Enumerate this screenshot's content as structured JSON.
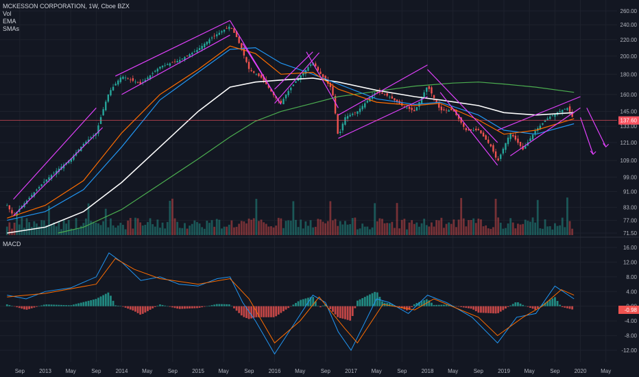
{
  "header": {
    "title": "MCKESSON CORPORATION, 1W, Cboe BZX",
    "indicators": [
      "Vol",
      "EMA",
      "SMAs"
    ]
  },
  "macd_label": "MACD",
  "colors": {
    "background": "#131722",
    "up": "#26a69a",
    "down": "#ef5350",
    "trendline": "#e040fb",
    "ema": "#ff6d00",
    "sma50": "#2196f3",
    "sma100": "#ffffff",
    "sma200": "#4caf50",
    "price_line": "#f7525f",
    "macd_line": "#2196f3",
    "signal_line": "#ff6d00",
    "grid": "#1e222d",
    "axis_text": "#b2b5be"
  },
  "chart_data": [
    {
      "type": "candlestick",
      "title": "MCKESSON CORPORATION, 1W, Cboe BZX",
      "scale": "log",
      "x_tick_labels": [
        "Sep",
        "2013",
        "May",
        "Sep",
        "2014",
        "May",
        "Sep",
        "2015",
        "May",
        "Sep",
        "2016",
        "May",
        "Sep",
        "2017",
        "May",
        "Sep",
        "2018",
        "May",
        "Sep",
        "2019",
        "May",
        "Sep",
        "2020",
        "May"
      ],
      "y_tick_labels": [
        260.0,
        240.0,
        220.0,
        200.0,
        180.0,
        160.0,
        145.0,
        133.0,
        121.0,
        109.0,
        99.0,
        91.0,
        83.0,
        77.0,
        71.5
      ],
      "last_price": "137.60",
      "price_points": [
        {
          "x": "2012-07",
          "y": 84
        },
        {
          "x": "2012-08",
          "y": 79
        },
        {
          "x": "2012-10",
          "y": 86
        },
        {
          "x": "2013-01",
          "y": 97
        },
        {
          "x": "2013-05",
          "y": 110
        },
        {
          "x": "2013-07",
          "y": 120
        },
        {
          "x": "2013-09",
          "y": 128
        },
        {
          "x": "2013-10",
          "y": 145
        },
        {
          "x": "2013-11",
          "y": 162
        },
        {
          "x": "2014-01",
          "y": 178
        },
        {
          "x": "2014-04",
          "y": 170
        },
        {
          "x": "2014-07",
          "y": 188
        },
        {
          "x": "2014-10",
          "y": 195
        },
        {
          "x": "2015-01",
          "y": 208
        },
        {
          "x": "2015-03",
          "y": 222
        },
        {
          "x": "2015-06",
          "y": 238
        },
        {
          "x": "2015-07",
          "y": 224
        },
        {
          "x": "2015-09",
          "y": 185
        },
        {
          "x": "2015-11",
          "y": 176
        },
        {
          "x": "2016-01",
          "y": 158
        },
        {
          "x": "2016-02",
          "y": 152
        },
        {
          "x": "2016-03",
          "y": 162
        },
        {
          "x": "2016-05",
          "y": 178
        },
        {
          "x": "2016-07",
          "y": 193
        },
        {
          "x": "2016-08",
          "y": 182
        },
        {
          "x": "2016-10",
          "y": 165
        },
        {
          "x": "2016-11",
          "y": 124
        },
        {
          "x": "2016-12",
          "y": 140
        },
        {
          "x": "2017-02",
          "y": 145
        },
        {
          "x": "2017-05",
          "y": 163
        },
        {
          "x": "2017-07",
          "y": 158
        },
        {
          "x": "2017-09",
          "y": 150
        },
        {
          "x": "2017-11",
          "y": 145
        },
        {
          "x": "2018-01",
          "y": 168
        },
        {
          "x": "2018-03",
          "y": 146
        },
        {
          "x": "2018-05",
          "y": 146
        },
        {
          "x": "2018-07",
          "y": 130
        },
        {
          "x": "2018-09",
          "y": 130
        },
        {
          "x": "2018-11",
          "y": 118
        },
        {
          "x": "2018-12",
          "y": 108
        },
        {
          "x": "2019-02",
          "y": 128
        },
        {
          "x": "2019-04",
          "y": 116
        },
        {
          "x": "2019-06",
          "y": 130
        },
        {
          "x": "2019-08",
          "y": 140
        },
        {
          "x": "2019-10",
          "y": 146
        },
        {
          "x": "2019-11",
          "y": 148
        },
        {
          "x": "2019-12",
          "y": 137.6
        }
      ],
      "ema": [
        {
          "x": "2012-07",
          "y": 78
        },
        {
          "x": "2013-01",
          "y": 84
        },
        {
          "x": "2013-07",
          "y": 97
        },
        {
          "x": "2014-01",
          "y": 128
        },
        {
          "x": "2014-07",
          "y": 160
        },
        {
          "x": "2015-01",
          "y": 185
        },
        {
          "x": "2015-06",
          "y": 212
        },
        {
          "x": "2015-10",
          "y": 203
        },
        {
          "x": "2016-02",
          "y": 180
        },
        {
          "x": "2016-07",
          "y": 182
        },
        {
          "x": "2016-11",
          "y": 165
        },
        {
          "x": "2017-05",
          "y": 153
        },
        {
          "x": "2017-11",
          "y": 150
        },
        {
          "x": "2018-03",
          "y": 152
        },
        {
          "x": "2018-09",
          "y": 138
        },
        {
          "x": "2019-01",
          "y": 127
        },
        {
          "x": "2019-06",
          "y": 130
        },
        {
          "x": "2019-12",
          "y": 139
        }
      ],
      "sma_50": [
        {
          "x": "2012-07",
          "y": 77
        },
        {
          "x": "2013-01",
          "y": 81
        },
        {
          "x": "2013-07",
          "y": 92
        },
        {
          "x": "2014-01",
          "y": 118
        },
        {
          "x": "2014-07",
          "y": 155
        },
        {
          "x": "2015-01",
          "y": 182
        },
        {
          "x": "2015-06",
          "y": 208
        },
        {
          "x": "2015-10",
          "y": 210
        },
        {
          "x": "2016-02",
          "y": 192
        },
        {
          "x": "2016-07",
          "y": 180
        },
        {
          "x": "2016-11",
          "y": 170
        },
        {
          "x": "2017-05",
          "y": 156
        },
        {
          "x": "2017-11",
          "y": 151
        },
        {
          "x": "2018-03",
          "y": 153
        },
        {
          "x": "2018-09",
          "y": 142
        },
        {
          "x": "2019-01",
          "y": 130
        },
        {
          "x": "2019-06",
          "y": 127
        },
        {
          "x": "2019-12",
          "y": 135
        }
      ],
      "sma_100": [
        {
          "x": "2012-07",
          "y": 71.5
        },
        {
          "x": "2013-01",
          "y": 74
        },
        {
          "x": "2013-07",
          "y": 81
        },
        {
          "x": "2014-01",
          "y": 96
        },
        {
          "x": "2014-07",
          "y": 118
        },
        {
          "x": "2015-01",
          "y": 145
        },
        {
          "x": "2015-06",
          "y": 167
        },
        {
          "x": "2015-10",
          "y": 172
        },
        {
          "x": "2016-02",
          "y": 174
        },
        {
          "x": "2016-07",
          "y": 176
        },
        {
          "x": "2016-11",
          "y": 172
        },
        {
          "x": "2017-05",
          "y": 164
        },
        {
          "x": "2017-11",
          "y": 158
        },
        {
          "x": "2018-03",
          "y": 155
        },
        {
          "x": "2018-09",
          "y": 150
        },
        {
          "x": "2019-01",
          "y": 144
        },
        {
          "x": "2019-06",
          "y": 142
        },
        {
          "x": "2019-12",
          "y": 144
        }
      ],
      "sma_200": [
        {
          "x": "2013-03",
          "y": 71.5
        },
        {
          "x": "2013-07",
          "y": 74
        },
        {
          "x": "2014-01",
          "y": 82
        },
        {
          "x": "2014-07",
          "y": 95
        },
        {
          "x": "2015-01",
          "y": 110
        },
        {
          "x": "2015-06",
          "y": 125
        },
        {
          "x": "2015-10",
          "y": 137
        },
        {
          "x": "2016-02",
          "y": 145
        },
        {
          "x": "2016-07",
          "y": 152
        },
        {
          "x": "2016-11",
          "y": 158
        },
        {
          "x": "2017-05",
          "y": 163
        },
        {
          "x": "2017-11",
          "y": 168
        },
        {
          "x": "2018-05",
          "y": 171
        },
        {
          "x": "2018-09",
          "y": 172
        },
        {
          "x": "2019-01",
          "y": 170
        },
        {
          "x": "2019-06",
          "y": 167
        },
        {
          "x": "2019-12",
          "y": 162
        }
      ],
      "trendlines": [
        {
          "from": {
            "x": "2012-08",
            "y": 79
          },
          "to": {
            "x": "2013-10",
            "y": 132
          }
        },
        {
          "from": {
            "x": "2012-08",
            "y": 87
          },
          "to": {
            "x": "2013-09",
            "y": 148
          }
        },
        {
          "from": {
            "x": "2013-12",
            "y": 178
          },
          "to": {
            "x": "2015-06",
            "y": 246
          }
        },
        {
          "from": {
            "x": "2014-01",
            "y": 160
          },
          "to": {
            "x": "2015-06",
            "y": 226
          }
        },
        {
          "from": {
            "x": "2015-06",
            "y": 246
          },
          "to": {
            "x": "2016-01",
            "y": 160
          }
        },
        {
          "from": {
            "x": "2015-08",
            "y": 215
          },
          "to": {
            "x": "2016-02",
            "y": 151
          }
        },
        {
          "from": {
            "x": "2016-01",
            "y": 152
          },
          "to": {
            "x": "2016-08",
            "y": 204
          }
        },
        {
          "from": {
            "x": "2016-01",
            "y": 165
          },
          "to": {
            "x": "2016-07",
            "y": 205
          }
        },
        {
          "from": {
            "x": "2016-06",
            "y": 205
          },
          "to": {
            "x": "2016-11",
            "y": 148
          }
        },
        {
          "from": {
            "x": "2016-11",
            "y": 124
          },
          "to": {
            "x": "2018-01",
            "y": 158
          }
        },
        {
          "from": {
            "x": "2016-11",
            "y": 142
          },
          "to": {
            "x": "2018-01",
            "y": 190
          }
        },
        {
          "from": {
            "x": "2018-01",
            "y": 185
          },
          "to": {
            "x": "2018-12",
            "y": 121
          }
        },
        {
          "from": {
            "x": "2018-03",
            "y": 162
          },
          "to": {
            "x": "2018-12",
            "y": 106
          }
        },
        {
          "from": {
            "x": "2018-12",
            "y": 130
          },
          "to": {
            "x": "2020-01",
            "y": 158
          }
        },
        {
          "from": {
            "x": "2019-02",
            "y": 112
          },
          "to": {
            "x": "2020-01",
            "y": 148
          }
        }
      ],
      "projection_arrows": [
        {
          "from": {
            "x": "2020-01",
            "y": 140
          },
          "to": {
            "x": "2020-03",
            "y": 113
          }
        },
        {
          "from": {
            "x": "2020-02",
            "y": 148
          },
          "to": {
            "x": "2020-05",
            "y": 118
          }
        }
      ],
      "volume_overlay": true
    },
    {
      "type": "macd",
      "title": "MACD",
      "y_tick_labels": [
        16.0,
        12.0,
        8.0,
        4.0,
        0.0,
        -4.0,
        -8.0,
        -12.0
      ],
      "last_value": "-0.98",
      "macd_line": [
        {
          "x": "2012-07",
          "y": 3
        },
        {
          "x": "2012-10",
          "y": 2
        },
        {
          "x": "2013-01",
          "y": 4
        },
        {
          "x": "2013-05",
          "y": 5
        },
        {
          "x": "2013-09",
          "y": 8
        },
        {
          "x": "2013-11",
          "y": 14.5
        },
        {
          "x": "2014-01",
          "y": 12
        },
        {
          "x": "2014-04",
          "y": 7
        },
        {
          "x": "2014-07",
          "y": 8
        },
        {
          "x": "2014-10",
          "y": 6
        },
        {
          "x": "2015-01",
          "y": 5.5
        },
        {
          "x": "2015-04",
          "y": 7.5
        },
        {
          "x": "2015-06",
          "y": 8
        },
        {
          "x": "2015-08",
          "y": 1
        },
        {
          "x": "2015-10",
          "y": -4
        },
        {
          "x": "2016-01",
          "y": -13
        },
        {
          "x": "2016-04",
          "y": -5
        },
        {
          "x": "2016-07",
          "y": 3
        },
        {
          "x": "2016-09",
          "y": 1
        },
        {
          "x": "2016-11",
          "y": -7
        },
        {
          "x": "2017-01",
          "y": -12
        },
        {
          "x": "2017-05",
          "y": 2
        },
        {
          "x": "2017-07",
          "y": 1
        },
        {
          "x": "2017-10",
          "y": -2
        },
        {
          "x": "2018-01",
          "y": 3
        },
        {
          "x": "2018-04",
          "y": 1
        },
        {
          "x": "2018-08",
          "y": -3
        },
        {
          "x": "2018-12",
          "y": -10
        },
        {
          "x": "2019-03",
          "y": -3
        },
        {
          "x": "2019-06",
          "y": -2
        },
        {
          "x": "2019-09",
          "y": 5.5
        },
        {
          "x": "2019-12",
          "y": 2
        }
      ],
      "signal_line": [
        {
          "x": "2012-07",
          "y": 2.5
        },
        {
          "x": "2013-01",
          "y": 3.5
        },
        {
          "x": "2013-09",
          "y": 6
        },
        {
          "x": "2013-12",
          "y": 13
        },
        {
          "x": "2014-03",
          "y": 10
        },
        {
          "x": "2014-07",
          "y": 7.5
        },
        {
          "x": "2015-01",
          "y": 6
        },
        {
          "x": "2015-06",
          "y": 7.5
        },
        {
          "x": "2015-09",
          "y": 2
        },
        {
          "x": "2016-01",
          "y": -10
        },
        {
          "x": "2016-05",
          "y": -4
        },
        {
          "x": "2016-08",
          "y": 2.5
        },
        {
          "x": "2016-12",
          "y": -6
        },
        {
          "x": "2017-02",
          "y": -10
        },
        {
          "x": "2017-06",
          "y": 0.5
        },
        {
          "x": "2017-11",
          "y": -1
        },
        {
          "x": "2018-02",
          "y": 2
        },
        {
          "x": "2018-09",
          "y": -3
        },
        {
          "x": "2018-12",
          "y": -8
        },
        {
          "x": "2019-04",
          "y": -3
        },
        {
          "x": "2019-07",
          "y": 0
        },
        {
          "x": "2019-10",
          "y": 4.5
        },
        {
          "x": "2019-12",
          "y": 3
        }
      ]
    }
  ]
}
